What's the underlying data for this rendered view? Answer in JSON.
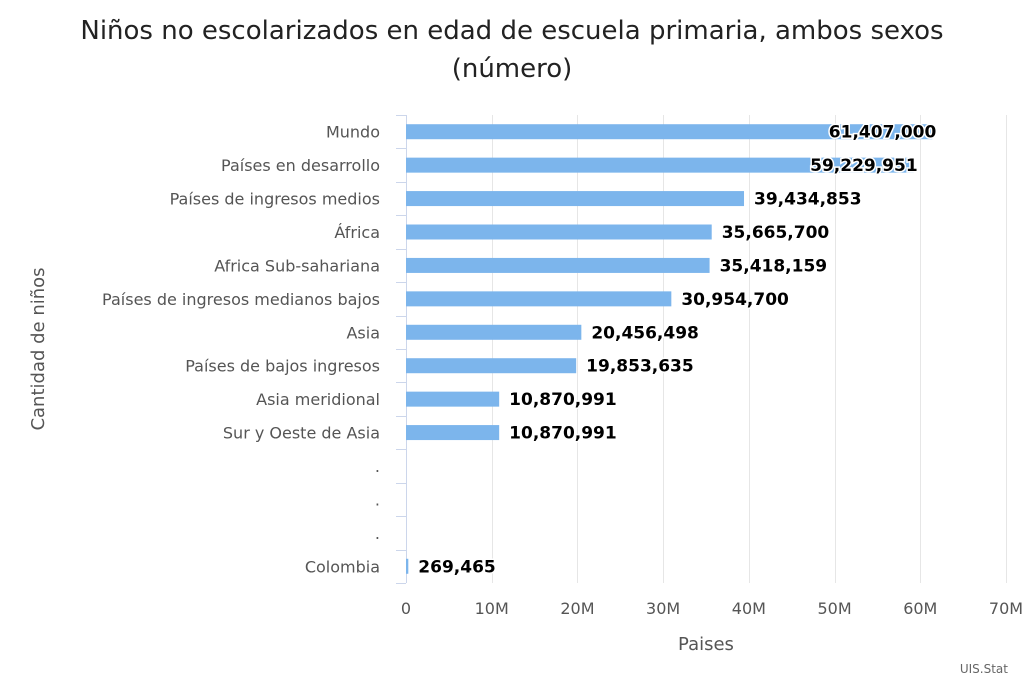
{
  "chart_data": {
    "type": "bar",
    "orientation": "horizontal",
    "title": "Niños no escolarizados en edad de escuela primaria, ambos sexos (número)",
    "xlabel": "Paises",
    "ylabel": "Cantidad de niños",
    "categories": [
      "Mundo",
      "Países en desarrollo",
      "Países de ingresos medios",
      "África",
      "Africa Sub-sahariana",
      "Países de ingresos medianos bajos",
      "Asia",
      "Países de bajos ingresos",
      "Asia meridional",
      "Sur y Oeste de Asia",
      ".",
      ".",
      ".",
      "Colombia"
    ],
    "values": [
      61407000,
      59229951,
      39434853,
      35665700,
      35418159,
      30954700,
      20456498,
      19853635,
      10870991,
      10870991,
      null,
      null,
      null,
      269465
    ],
    "data_labels": [
      "61,407,000",
      "59,229,951",
      "39,434,853",
      "35,665,700",
      "35,418,159",
      "30,954,700",
      "20,456,498",
      "19,853,635",
      "10,870,991",
      "10,870,991",
      "",
      "",
      "",
      "269,465"
    ],
    "xticks": [
      0,
      10000000,
      20000000,
      30000000,
      40000000,
      50000000,
      60000000,
      70000000
    ],
    "xtick_labels": [
      "0",
      "10M",
      "20M",
      "30M",
      "40M",
      "50M",
      "60M",
      "70M"
    ],
    "xlim": [
      0,
      70000000
    ],
    "grid": true,
    "bar_color": "#7cb5ec",
    "grid_color": "#e6e6e6",
    "credit": "UIS.Stat"
  }
}
